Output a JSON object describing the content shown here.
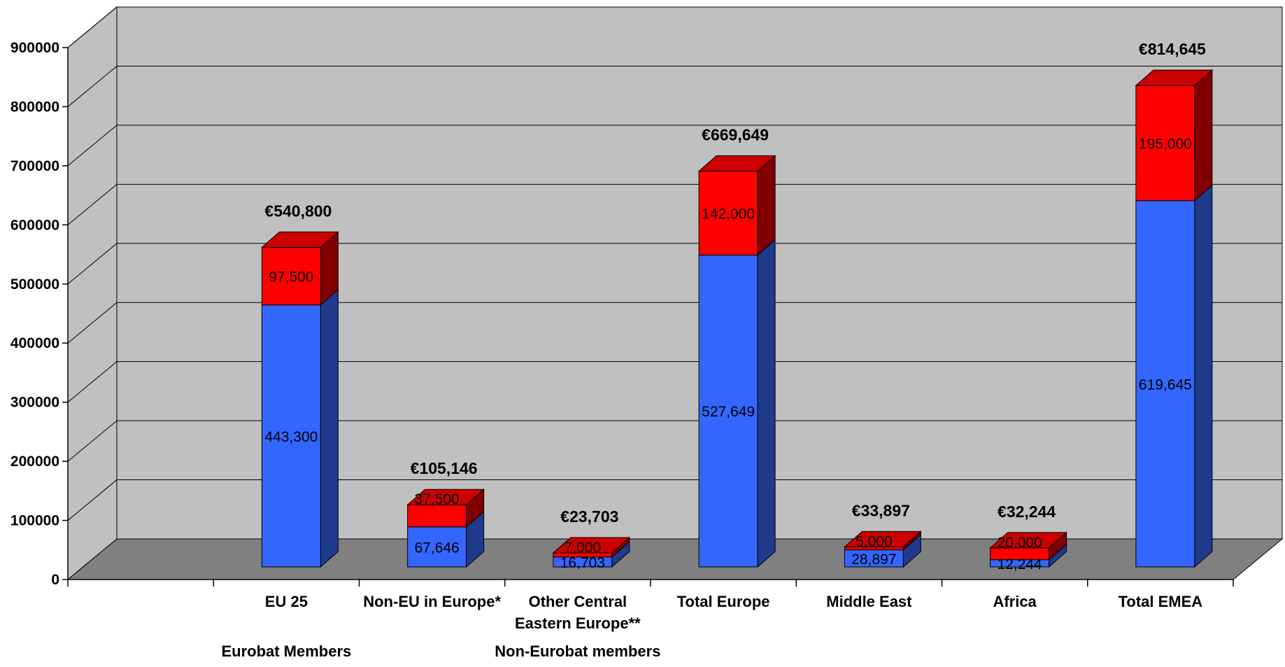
{
  "chart_data": {
    "type": "bar",
    "stacked": true,
    "three_d": true,
    "categories": [
      "",
      "EU 25",
      "Non-EU in Europe*",
      "Other Central Eastern Europe**",
      "Total Europe",
      "Middle East",
      "Africa",
      "Total EMEA"
    ],
    "category_lines": {
      "Other Central Eastern Europe**": [
        "Other Central",
        "Eastern Europe**"
      ]
    },
    "series": [
      {
        "values": [
          null,
          443300,
          67646,
          16703,
          527649,
          28897,
          12244,
          619645
        ],
        "labels": [
          "",
          "443,300",
          "67,646",
          "16,703",
          "527,649",
          "28,897",
          "12,244",
          "619,645"
        ]
      },
      {
        "values": [
          null,
          97500,
          37500,
          7000,
          142000,
          5000,
          20000,
          195000
        ],
        "labels": [
          "",
          "97,500",
          "37,500",
          "7,000",
          "142,000",
          "5,000",
          "20,000",
          "195,000"
        ]
      }
    ],
    "totals": [
      "",
      "€540,800",
      "€105,146",
      "€23,703",
      "€669,649",
      "€33,897",
      "€32,244",
      "€814,645"
    ],
    "group_labels": [
      "Eurobat Members",
      "Non-Eurobat members"
    ],
    "ylim": [
      0,
      900000
    ],
    "yticks": [
      "0",
      "100000",
      "200000",
      "300000",
      "400000",
      "500000",
      "600000",
      "700000",
      "800000",
      "900000"
    ],
    "grid": true,
    "colors": {
      "series_1_front": "#3366ff",
      "series_1_side": "#1f3a8a",
      "series_2_front": "#ff0000",
      "series_2_side": "#800000",
      "series_2_top": "#cc0000",
      "wall": "#c0c0c0",
      "floor": "#808080",
      "gridline": "#000000"
    }
  }
}
